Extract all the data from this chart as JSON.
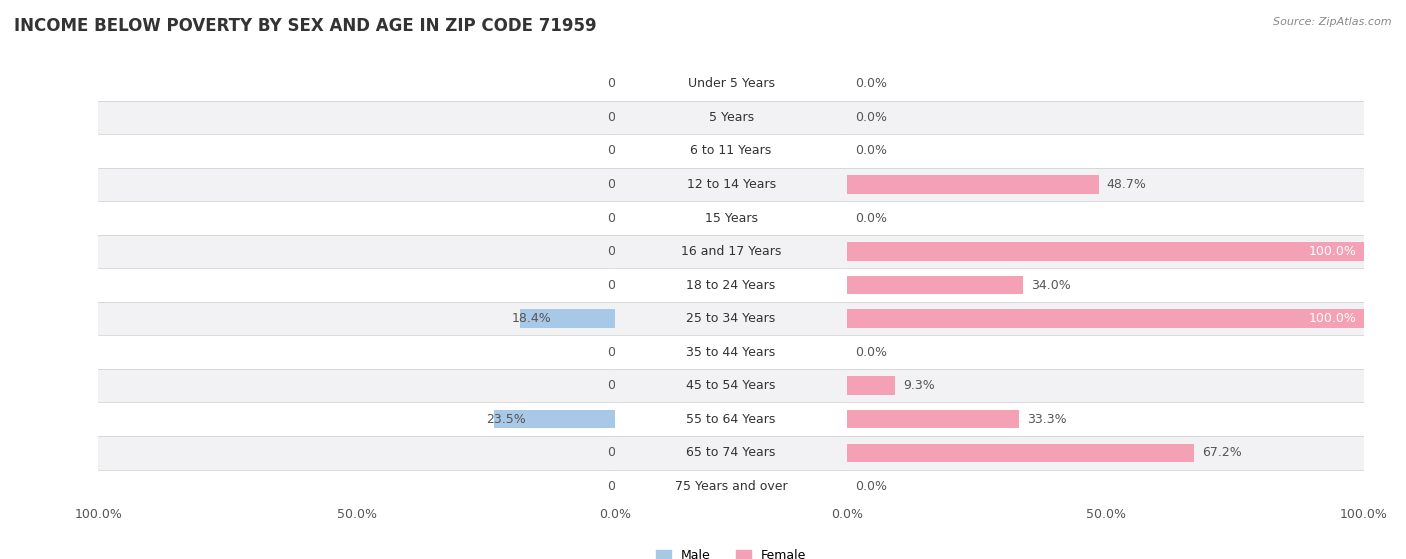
{
  "title": "INCOME BELOW POVERTY BY SEX AND AGE IN ZIP CODE 71959",
  "source": "Source: ZipAtlas.com",
  "categories": [
    "Under 5 Years",
    "5 Years",
    "6 to 11 Years",
    "12 to 14 Years",
    "15 Years",
    "16 and 17 Years",
    "18 to 24 Years",
    "25 to 34 Years",
    "35 to 44 Years",
    "45 to 54 Years",
    "55 to 64 Years",
    "65 to 74 Years",
    "75 Years and over"
  ],
  "male": [
    0.0,
    0.0,
    0.0,
    0.0,
    0.0,
    0.0,
    0.0,
    18.4,
    0.0,
    0.0,
    23.5,
    0.0,
    0.0
  ],
  "female": [
    0.0,
    0.0,
    0.0,
    48.7,
    0.0,
    100.0,
    34.0,
    100.0,
    0.0,
    9.3,
    33.3,
    67.2,
    0.0
  ],
  "male_color": "#a8c8e8",
  "female_color": "#f4a0b5",
  "label_color": "#555555",
  "white_label_color": "#ffffff",
  "background_color": "#ffffff",
  "row_even_color": "#f2f2f5",
  "row_odd_color": "#ffffff",
  "bar_height": 0.55,
  "max_val": 100,
  "title_fontsize": 12,
  "label_fontsize": 9,
  "tick_fontsize": 9,
  "cat_fontsize": 9
}
